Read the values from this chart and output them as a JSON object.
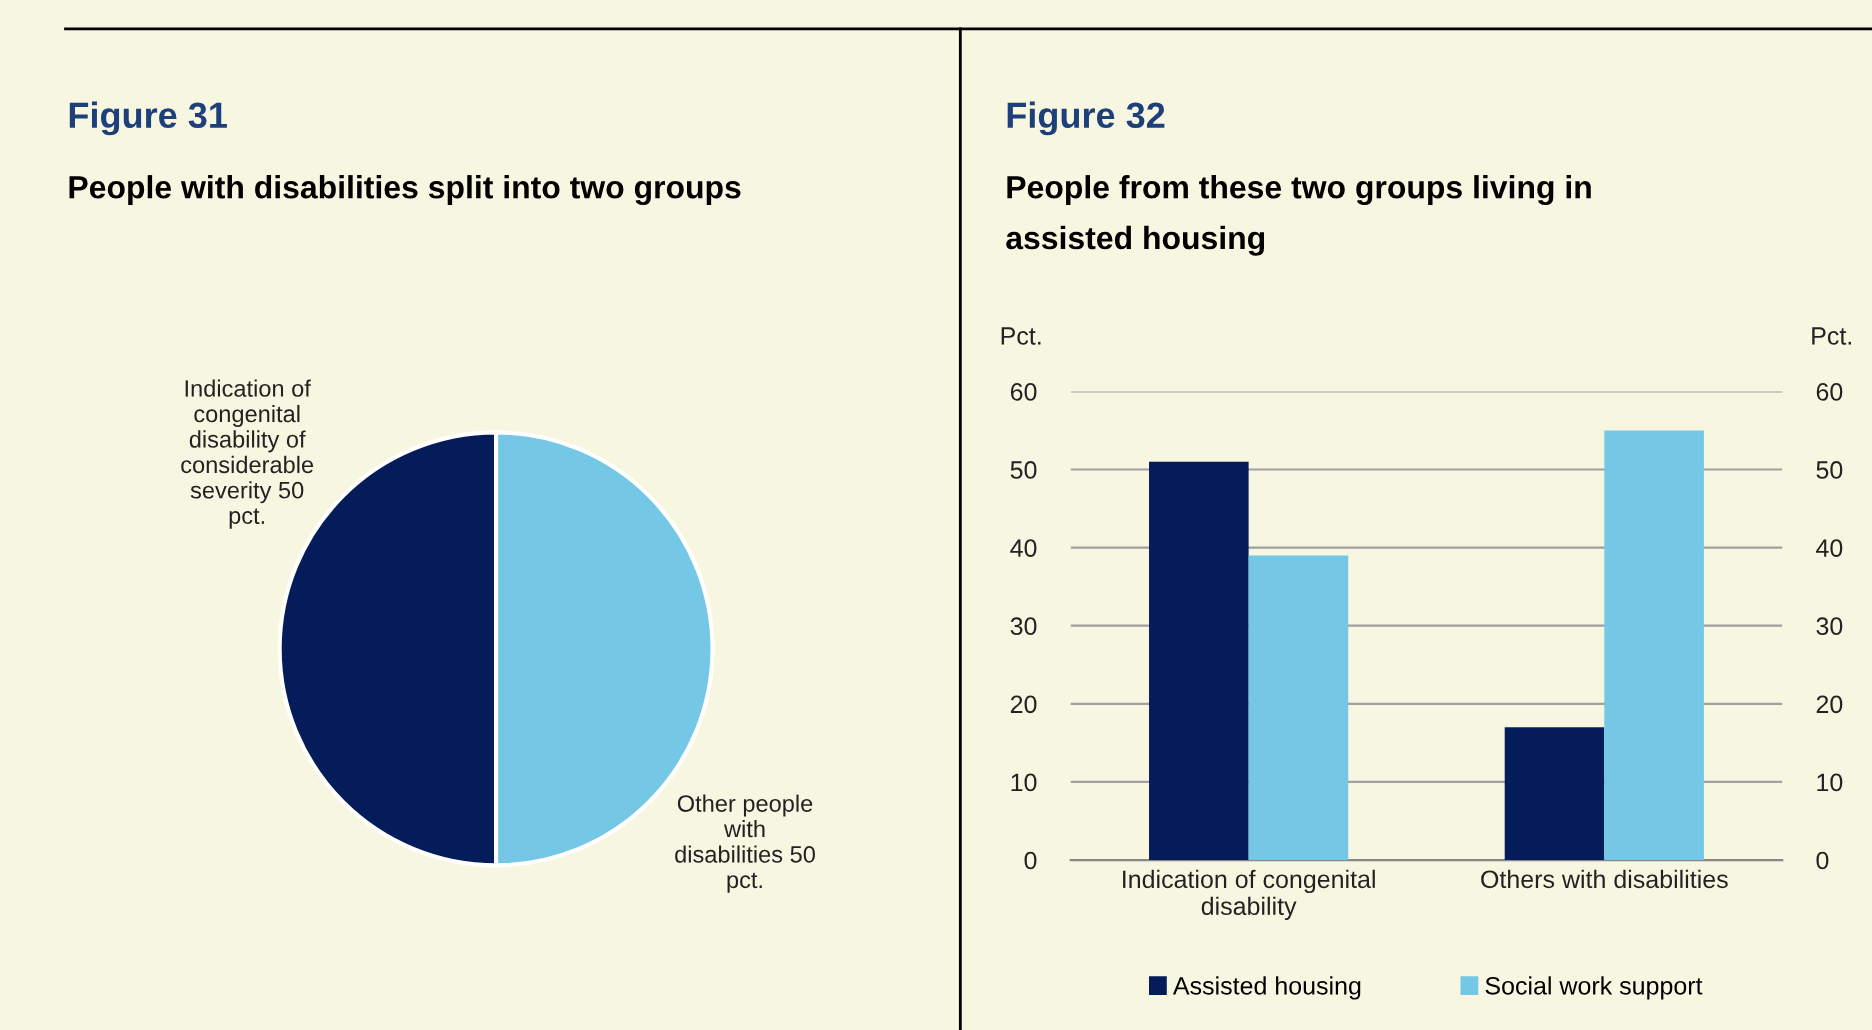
{
  "chart_data": [
    {
      "type": "pie",
      "title": "Figure 31",
      "subtitle": "People with disabilities split into two groups",
      "categories": [
        "Indication of congenital disability of considerable severity",
        "Other people with disabilities"
      ],
      "values": [
        50,
        50
      ],
      "value_labels": [
        "50 pct.",
        "50 pct."
      ],
      "colors": [
        "#041c5a",
        "#75c7e6"
      ],
      "legend": false
    },
    {
      "type": "bar",
      "title": "Figure 32",
      "subtitle": "People from these two groups living in assisted housing",
      "categories": [
        "Indication of congenital disability",
        "Others with disabilities"
      ],
      "series": [
        {
          "name": "Assisted housing",
          "color": "#041c5a",
          "values": [
            51,
            17
          ]
        },
        {
          "name": "Social work support",
          "color": "#75c7e6",
          "values": [
            39,
            55
          ]
        }
      ],
      "ylabel": "Pct.",
      "y2label": "Pct.",
      "ylim": [
        0,
        60
      ],
      "yticks": [
        0,
        10,
        20,
        30,
        40,
        50,
        60
      ],
      "y2lim": [
        0,
        60
      ],
      "y2ticks": [
        0,
        10,
        20,
        30,
        40,
        50,
        60
      ],
      "grid": "y",
      "legend": "bottom"
    }
  ]
}
